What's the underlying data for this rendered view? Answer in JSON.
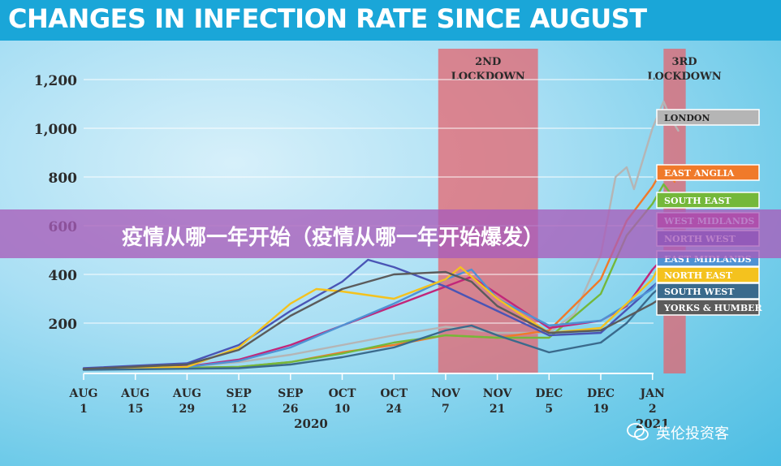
{
  "chart_data": {
    "type": "line",
    "title": "CHANGES IN INFECTION RATE SINCE AUGUST",
    "xlabel": "2020",
    "ylabel": "",
    "x_start": "2020-08-01",
    "x_ticks": [
      {
        "date": "2020-08-01",
        "month": "AUG",
        "day": "1"
      },
      {
        "date": "2020-08-15",
        "month": "AUG",
        "day": "15"
      },
      {
        "date": "2020-08-29",
        "month": "AUG",
        "day": "29"
      },
      {
        "date": "2020-09-12",
        "month": "SEP",
        "day": "12"
      },
      {
        "date": "2020-09-26",
        "month": "SEP",
        "day": "26"
      },
      {
        "date": "2020-10-10",
        "month": "OCT",
        "day": "10"
      },
      {
        "date": "2020-10-24",
        "month": "OCT",
        "day": "24"
      },
      {
        "date": "2020-11-07",
        "month": "NOV",
        "day": "7"
      },
      {
        "date": "2020-11-21",
        "month": "NOV",
        "day": "21"
      },
      {
        "date": "2020-12-05",
        "month": "DEC",
        "day": "5"
      },
      {
        "date": "2020-12-19",
        "month": "DEC",
        "day": "19"
      },
      {
        "date": "2021-01-02",
        "month": "JAN",
        "day": "2"
      }
    ],
    "x_end_label": "2021",
    "y_ticks": [
      200,
      400,
      600,
      800,
      1000,
      1200
    ],
    "y_tick_labels": [
      "200",
      "400",
      "600",
      "800",
      "1,000",
      "1,200"
    ],
    "ylim": [
      0,
      1300
    ],
    "grid": true,
    "legend": "right",
    "lockdowns": [
      {
        "label_line1": "2ND",
        "label_line2": "LOCKDOWN",
        "start": "2020-11-05",
        "end": "2020-12-02"
      },
      {
        "label_line1": "3RD",
        "label_line2": "LOCKDOWN",
        "start": "2021-01-05",
        "end": "2021-01-11"
      }
    ],
    "series": [
      {
        "name": "LONDON",
        "color": "#b5b5b5",
        "points": [
          [
            "2020-08-01",
            12
          ],
          [
            "2020-08-29",
            22
          ],
          [
            "2020-09-12",
            40
          ],
          [
            "2020-09-26",
            70
          ],
          [
            "2020-10-10",
            110
          ],
          [
            "2020-10-24",
            150
          ],
          [
            "2020-11-07",
            185
          ],
          [
            "2020-11-14",
            175
          ],
          [
            "2020-11-21",
            160
          ],
          [
            "2020-12-05",
            160
          ],
          [
            "2020-12-12",
            240
          ],
          [
            "2020-12-19",
            480
          ],
          [
            "2020-12-23",
            800
          ],
          [
            "2020-12-26",
            840
          ],
          [
            "2020-12-28",
            750
          ],
          [
            "2021-01-02",
            1000
          ],
          [
            "2021-01-05",
            1110
          ],
          [
            "2021-01-07",
            1040
          ],
          [
            "2021-01-09",
            990
          ]
        ]
      },
      {
        "name": "EAST ANGLIA",
        "color": "#f07a2a",
        "points": [
          [
            "2020-08-01",
            10
          ],
          [
            "2020-09-12",
            20
          ],
          [
            "2020-09-26",
            40
          ],
          [
            "2020-10-10",
            80
          ],
          [
            "2020-10-24",
            110
          ],
          [
            "2020-11-07",
            150
          ],
          [
            "2020-11-21",
            140
          ],
          [
            "2020-12-05",
            170
          ],
          [
            "2020-12-19",
            380
          ],
          [
            "2020-12-26",
            620
          ],
          [
            "2021-01-02",
            760
          ],
          [
            "2021-01-05",
            840
          ],
          [
            "2021-01-08",
            780
          ]
        ]
      },
      {
        "name": "SOUTH EAST",
        "color": "#74b83a",
        "points": [
          [
            "2020-08-01",
            10
          ],
          [
            "2020-09-12",
            20
          ],
          [
            "2020-09-26",
            40
          ],
          [
            "2020-10-10",
            75
          ],
          [
            "2020-10-24",
            120
          ],
          [
            "2020-11-07",
            150
          ],
          [
            "2020-11-21",
            140
          ],
          [
            "2020-12-05",
            140
          ],
          [
            "2020-12-19",
            320
          ],
          [
            "2020-12-26",
            560
          ],
          [
            "2021-01-02",
            690
          ],
          [
            "2021-01-05",
            770
          ],
          [
            "2021-01-08",
            710
          ]
        ]
      },
      {
        "name": "WEST MIDLANDS",
        "color": "#c2267a",
        "points": [
          [
            "2020-08-01",
            12
          ],
          [
            "2020-08-29",
            22
          ],
          [
            "2020-09-12",
            50
          ],
          [
            "2020-09-26",
            110
          ],
          [
            "2020-10-10",
            190
          ],
          [
            "2020-10-24",
            270
          ],
          [
            "2020-11-07",
            350
          ],
          [
            "2020-11-14",
            390
          ],
          [
            "2020-11-21",
            320
          ],
          [
            "2020-12-05",
            180
          ],
          [
            "2020-12-19",
            210
          ],
          [
            "2020-12-26",
            270
          ],
          [
            "2021-01-02",
            420
          ],
          [
            "2021-01-05",
            470
          ],
          [
            "2021-01-08",
            420
          ]
        ]
      },
      {
        "name": "NORTH WEST",
        "color": "#4a55b5",
        "points": [
          [
            "2020-08-01",
            15
          ],
          [
            "2020-08-29",
            35
          ],
          [
            "2020-09-12",
            110
          ],
          [
            "2020-09-26",
            250
          ],
          [
            "2020-10-10",
            370
          ],
          [
            "2020-10-17",
            460
          ],
          [
            "2020-10-24",
            430
          ],
          [
            "2020-11-07",
            350
          ],
          [
            "2020-11-21",
            250
          ],
          [
            "2020-12-05",
            150
          ],
          [
            "2020-12-19",
            160
          ],
          [
            "2021-01-02",
            350
          ],
          [
            "2021-01-06",
            400
          ],
          [
            "2021-01-08",
            370
          ]
        ]
      },
      {
        "name": "EAST MIDLANDS",
        "color": "#4f92d4",
        "points": [
          [
            "2020-08-01",
            10
          ],
          [
            "2020-08-29",
            20
          ],
          [
            "2020-09-12",
            45
          ],
          [
            "2020-09-26",
            100
          ],
          [
            "2020-10-10",
            190
          ],
          [
            "2020-10-24",
            280
          ],
          [
            "2020-11-07",
            380
          ],
          [
            "2020-11-14",
            420
          ],
          [
            "2020-11-21",
            300
          ],
          [
            "2020-12-05",
            190
          ],
          [
            "2020-12-19",
            210
          ],
          [
            "2021-01-02",
            340
          ],
          [
            "2021-01-06",
            420
          ],
          [
            "2021-01-08",
            380
          ]
        ]
      },
      {
        "name": "NORTH EAST",
        "color": "#f4c21e",
        "points": [
          [
            "2020-08-01",
            10
          ],
          [
            "2020-08-29",
            20
          ],
          [
            "2020-09-12",
            100
          ],
          [
            "2020-09-26",
            280
          ],
          [
            "2020-10-03",
            340
          ],
          [
            "2020-10-10",
            330
          ],
          [
            "2020-10-24",
            300
          ],
          [
            "2020-11-07",
            380
          ],
          [
            "2020-11-11",
            430
          ],
          [
            "2020-11-21",
            300
          ],
          [
            "2020-12-05",
            160
          ],
          [
            "2020-12-19",
            180
          ],
          [
            "2021-01-02",
            380
          ],
          [
            "2021-01-05",
            470
          ],
          [
            "2021-01-08",
            420
          ]
        ]
      },
      {
        "name": "SOUTH WEST",
        "color": "#3a6a8c",
        "points": [
          [
            "2020-08-01",
            8
          ],
          [
            "2020-09-12",
            15
          ],
          [
            "2020-09-26",
            30
          ],
          [
            "2020-10-10",
            60
          ],
          [
            "2020-10-24",
            100
          ],
          [
            "2020-11-07",
            170
          ],
          [
            "2020-11-14",
            190
          ],
          [
            "2020-11-21",
            150
          ],
          [
            "2020-12-05",
            80
          ],
          [
            "2020-12-19",
            120
          ],
          [
            "2020-12-26",
            200
          ],
          [
            "2021-01-02",
            320
          ],
          [
            "2021-01-05",
            360
          ],
          [
            "2021-01-08",
            340
          ]
        ]
      },
      {
        "name": "YORKS & HUMBER",
        "color": "#5b5b5b",
        "points": [
          [
            "2020-08-01",
            12
          ],
          [
            "2020-08-29",
            30
          ],
          [
            "2020-09-12",
            90
          ],
          [
            "2020-09-26",
            230
          ],
          [
            "2020-10-10",
            340
          ],
          [
            "2020-10-24",
            400
          ],
          [
            "2020-11-07",
            410
          ],
          [
            "2020-11-14",
            370
          ],
          [
            "2020-11-21",
            270
          ],
          [
            "2020-12-05",
            160
          ],
          [
            "2020-12-19",
            170
          ],
          [
            "2021-01-02",
            280
          ],
          [
            "2021-01-06",
            320
          ],
          [
            "2021-01-08",
            300
          ]
        ]
      }
    ]
  },
  "overlay": {
    "banner_text": "疫情从哪一年开始（疫情从哪一年开始爆发）",
    "watermark": "英伦投资客"
  },
  "colors": {
    "title_bg": "#1aa6d8",
    "lockdown": "#e8606a",
    "banner": "#a85cba"
  }
}
